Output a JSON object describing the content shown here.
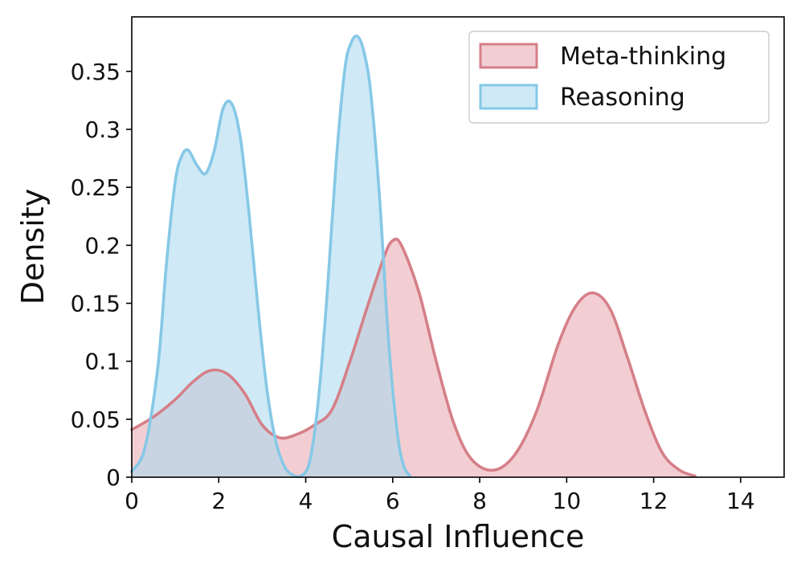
{
  "chart_data": {
    "type": "area",
    "title": "",
    "xlabel": "Causal Influence",
    "ylabel": "Density",
    "xlim": [
      0,
      15
    ],
    "ylim": [
      0,
      0.397
    ],
    "x_ticks": [
      0,
      2,
      4,
      6,
      8,
      10,
      12,
      14
    ],
    "x_tick_labels": [
      "0",
      "2",
      "4",
      "6",
      "8",
      "10",
      "12",
      "14"
    ],
    "y_ticks": [
      0,
      0.05,
      0.1,
      0.15,
      0.2,
      0.25,
      0.3,
      0.35
    ],
    "y_tick_labels": [
      "0",
      "0.05",
      "0.1",
      "0.15",
      "0.2",
      "0.25",
      "0.3",
      "0.35"
    ],
    "grid": false,
    "legend_position": "top-right",
    "series": [
      {
        "name": "Meta-thinking",
        "color": "#d57f88",
        "fill": "#e7a6ae",
        "x": [
          0.0,
          0.5,
          1.0,
          1.4,
          1.8,
          2.2,
          2.6,
          3.0,
          3.4,
          3.8,
          4.2,
          4.6,
          5.0,
          5.4,
          5.8,
          6.0,
          6.2,
          6.6,
          7.0,
          7.4,
          7.8,
          8.3,
          8.8,
          9.3,
          9.8,
          10.2,
          10.6,
          11.0,
          11.4,
          11.8,
          12.2,
          12.6,
          12.95
        ],
        "values": [
          0.041,
          0.052,
          0.067,
          0.082,
          0.092,
          0.089,
          0.072,
          0.045,
          0.034,
          0.037,
          0.045,
          0.058,
          0.098,
          0.145,
          0.19,
          0.204,
          0.2,
          0.16,
          0.1,
          0.047,
          0.016,
          0.006,
          0.019,
          0.056,
          0.114,
          0.147,
          0.159,
          0.145,
          0.103,
          0.057,
          0.021,
          0.006,
          0.001
        ]
      },
      {
        "name": "Reasoning",
        "color": "#86c8e6",
        "fill": "#a8d9ef",
        "x": [
          0.0,
          0.3,
          0.6,
          0.8,
          1.0,
          1.15,
          1.3,
          1.5,
          1.7,
          1.9,
          2.1,
          2.3,
          2.5,
          2.7,
          2.9,
          3.1,
          3.3,
          3.5,
          3.7,
          3.9,
          4.1,
          4.3,
          4.5,
          4.7,
          4.9,
          5.05,
          5.2,
          5.35,
          5.5,
          5.7,
          5.9,
          6.1,
          6.25,
          6.4
        ],
        "values": [
          0.005,
          0.025,
          0.095,
          0.185,
          0.255,
          0.277,
          0.282,
          0.269,
          0.262,
          0.282,
          0.318,
          0.322,
          0.292,
          0.226,
          0.147,
          0.078,
          0.033,
          0.01,
          0.002,
          0.001,
          0.015,
          0.07,
          0.162,
          0.272,
          0.352,
          0.375,
          0.38,
          0.365,
          0.33,
          0.24,
          0.12,
          0.04,
          0.01,
          0.001
        ]
      }
    ]
  }
}
